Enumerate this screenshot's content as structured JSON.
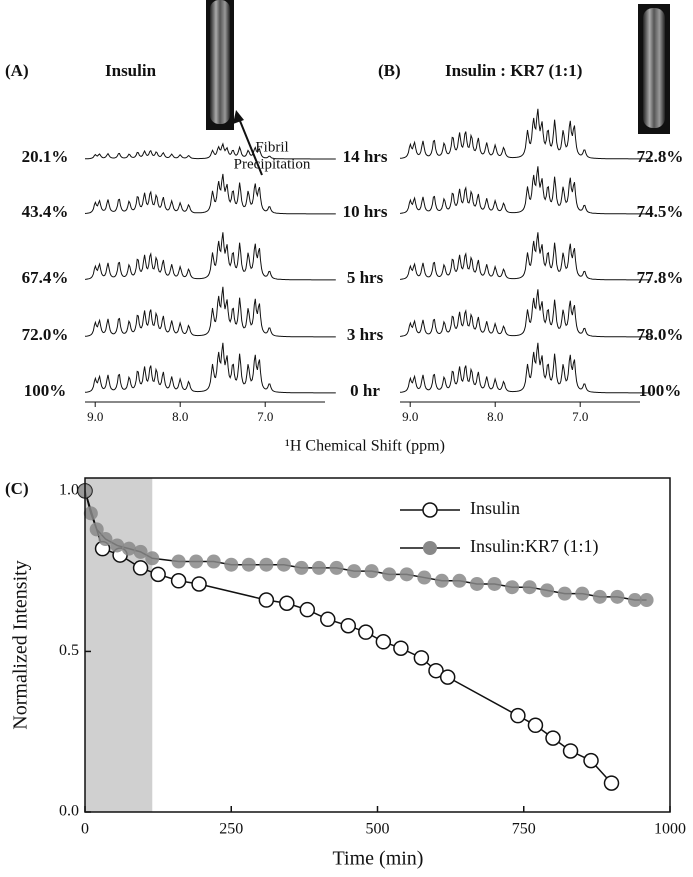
{
  "panel_a": {
    "label": "(A)",
    "title": "Insulin",
    "annotation": [
      "Fibril",
      "Precipitation"
    ],
    "intensities": [
      "20.1%",
      "43.4%",
      "67.4%",
      "72.0%",
      "100%"
    ]
  },
  "panel_b": {
    "label": "(B)",
    "title": "Insulin : KR7 (1:1)",
    "intensities": [
      "72.8%",
      "74.5%",
      "77.8%",
      "78.0%",
      "100%"
    ]
  },
  "times": [
    "14 hrs",
    "10 hrs",
    "5 hrs",
    "3 hrs",
    "0 hr"
  ],
  "spectra_axis": {
    "ticks": [
      "9.0",
      "8.0",
      "7.0"
    ],
    "label": "¹H Chemical Shift (ppm)"
  },
  "chart_data": {
    "type": "scatter",
    "label": "(C)",
    "x_label": "Time (min)",
    "y_label": "Normalized Intensity",
    "xlim": [
      0,
      1000
    ],
    "ylim": [
      0,
      1.04
    ],
    "xticks": [
      0,
      250,
      500,
      750,
      1000
    ],
    "yticks": [
      {
        "value": 0,
        "label": "0.0"
      },
      0.5,
      {
        "value": 1,
        "label": "1.0"
      }
    ],
    "shaded_region": [
      0,
      115
    ],
    "legend": "upper right",
    "series": [
      {
        "name": "Insulin",
        "color": "#111111",
        "marker": "open",
        "x": [
          0,
          30,
          60,
          95,
          125,
          160,
          195,
          310,
          345,
          380,
          415,
          450,
          480,
          510,
          540,
          575,
          600,
          620,
          740,
          770,
          800,
          830,
          865,
          900
        ],
        "values": [
          1.0,
          0.82,
          0.8,
          0.76,
          0.74,
          0.72,
          0.71,
          0.66,
          0.65,
          0.63,
          0.6,
          0.58,
          0.56,
          0.53,
          0.51,
          0.48,
          0.44,
          0.42,
          0.3,
          0.27,
          0.23,
          0.19,
          0.16,
          0.09
        ]
      },
      {
        "name": "Insulin:KR7 (1:1)",
        "color": "#888888",
        "marker": "filled",
        "x": [
          0,
          10,
          20,
          35,
          55,
          75,
          95,
          115,
          160,
          190,
          220,
          250,
          280,
          310,
          340,
          370,
          400,
          430,
          460,
          490,
          520,
          550,
          580,
          610,
          640,
          670,
          700,
          730,
          760,
          790,
          820,
          850,
          880,
          910,
          940,
          960
        ],
        "values": [
          1.0,
          0.93,
          0.88,
          0.85,
          0.83,
          0.82,
          0.81,
          0.79,
          0.78,
          0.78,
          0.78,
          0.77,
          0.77,
          0.77,
          0.77,
          0.76,
          0.76,
          0.76,
          0.75,
          0.75,
          0.74,
          0.74,
          0.73,
          0.72,
          0.72,
          0.71,
          0.71,
          0.7,
          0.7,
          0.69,
          0.68,
          0.68,
          0.67,
          0.67,
          0.66,
          0.66
        ]
      }
    ]
  }
}
